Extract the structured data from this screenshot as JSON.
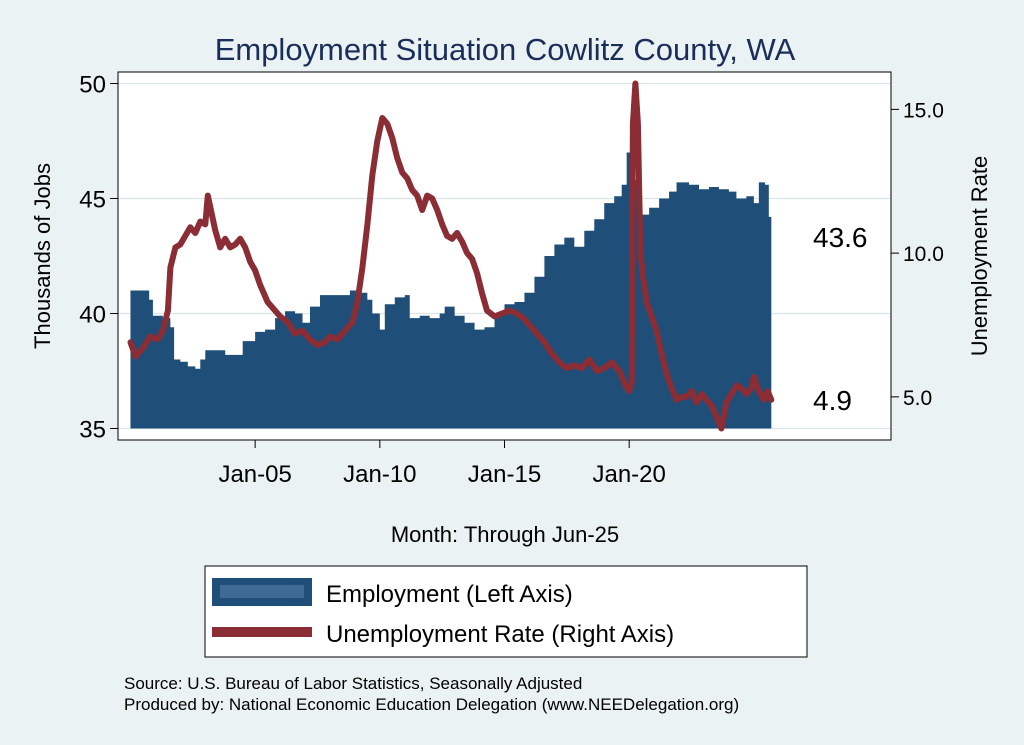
{
  "chart_data": {
    "type": "area+line",
    "title": "Employment Situation Cowlitz  County, WA",
    "xlabel": "Month: Through Jun-25",
    "ylabel_left": "Thousands of Jobs",
    "ylabel_right": "Unemployment Rate",
    "x_range": [
      1999.5,
      2030.5
    ],
    "ylim_left": [
      34.5,
      50.5
    ],
    "ylim_right": [
      3.5,
      16.3
    ],
    "yticks_left": [
      35,
      40,
      45,
      50
    ],
    "yticks_right": [
      5.0,
      10.0,
      15.0
    ],
    "yticks_right_labels": [
      "5.0",
      "10.0",
      "15.0"
    ],
    "xticks": [
      2005,
      2010,
      2015,
      2020
    ],
    "xtick_labels": [
      "Jan-05",
      "Jan-10",
      "Jan-15",
      "Jan-20"
    ],
    "series": [
      {
        "name": "Employment (Left Axis)",
        "axis": "left",
        "kind": "area",
        "color": "#1f4e79",
        "end_label": "43.6",
        "points": [
          [
            2000.0,
            41.0
          ],
          [
            2000.4,
            41.0
          ],
          [
            2000.75,
            40.6
          ],
          [
            2000.9,
            39.9
          ],
          [
            2001.3,
            39.8
          ],
          [
            2001.6,
            39.4
          ],
          [
            2001.75,
            38.0
          ],
          [
            2002.0,
            37.9
          ],
          [
            2002.3,
            37.7
          ],
          [
            2002.6,
            37.6
          ],
          [
            2002.8,
            38.0
          ],
          [
            2003.0,
            38.4
          ],
          [
            2003.4,
            38.4
          ],
          [
            2003.8,
            38.2
          ],
          [
            2004.2,
            38.2
          ],
          [
            2004.5,
            38.8
          ],
          [
            2005.0,
            39.2
          ],
          [
            2005.4,
            39.3
          ],
          [
            2005.8,
            39.8
          ],
          [
            2006.2,
            40.1
          ],
          [
            2006.6,
            40.0
          ],
          [
            2006.9,
            39.6
          ],
          [
            2007.2,
            40.3
          ],
          [
            2007.6,
            40.8
          ],
          [
            2008.0,
            40.8
          ],
          [
            2008.4,
            40.8
          ],
          [
            2008.8,
            41.0
          ],
          [
            2009.2,
            40.9
          ],
          [
            2009.5,
            40.6
          ],
          [
            2009.7,
            40.0
          ],
          [
            2010.0,
            39.3
          ],
          [
            2010.2,
            40.4
          ],
          [
            2010.6,
            40.7
          ],
          [
            2011.0,
            40.8
          ],
          [
            2011.2,
            39.8
          ],
          [
            2011.6,
            39.9
          ],
          [
            2012.0,
            39.8
          ],
          [
            2012.4,
            40.0
          ],
          [
            2012.6,
            40.3
          ],
          [
            2013.0,
            39.9
          ],
          [
            2013.4,
            39.6
          ],
          [
            2013.8,
            39.3
          ],
          [
            2014.2,
            39.4
          ],
          [
            2014.6,
            40.0
          ],
          [
            2015.0,
            40.4
          ],
          [
            2015.4,
            40.5
          ],
          [
            2015.8,
            40.9
          ],
          [
            2016.2,
            41.6
          ],
          [
            2016.6,
            42.5
          ],
          [
            2017.0,
            43.0
          ],
          [
            2017.4,
            43.3
          ],
          [
            2017.8,
            42.9
          ],
          [
            2018.2,
            43.6
          ],
          [
            2018.6,
            44.1
          ],
          [
            2019.0,
            44.8
          ],
          [
            2019.4,
            45.1
          ],
          [
            2019.7,
            45.6
          ],
          [
            2019.9,
            47.0
          ],
          [
            2020.1,
            46.5
          ],
          [
            2020.2,
            45.8
          ],
          [
            2020.45,
            44.3
          ],
          [
            2020.8,
            44.6
          ],
          [
            2021.2,
            45.0
          ],
          [
            2021.6,
            45.3
          ],
          [
            2021.9,
            45.7
          ],
          [
            2022.4,
            45.6
          ],
          [
            2022.8,
            45.4
          ],
          [
            2023.2,
            45.5
          ],
          [
            2023.6,
            45.4
          ],
          [
            2024.0,
            45.3
          ],
          [
            2024.3,
            45.0
          ],
          [
            2024.7,
            45.1
          ],
          [
            2025.0,
            44.8
          ],
          [
            2025.2,
            45.7
          ],
          [
            2025.45,
            45.6
          ],
          [
            2025.5,
            45.6
          ],
          [
            2025.6,
            44.2
          ],
          [
            2025.7,
            43.6
          ]
        ]
      },
      {
        "name": "Unemployment Rate (Right Axis)",
        "axis": "right",
        "kind": "line",
        "color": "#8b2d35",
        "end_label": "4.9",
        "points": [
          [
            2000.0,
            6.9
          ],
          [
            2000.2,
            6.4
          ],
          [
            2000.5,
            6.7
          ],
          [
            2000.8,
            7.1
          ],
          [
            2001.1,
            7.0
          ],
          [
            2001.3,
            7.3
          ],
          [
            2001.5,
            8.0
          ],
          [
            2001.6,
            9.5
          ],
          [
            2001.8,
            10.2
          ],
          [
            2002.0,
            10.3
          ],
          [
            2002.2,
            10.6
          ],
          [
            2002.4,
            10.9
          ],
          [
            2002.6,
            10.7
          ],
          [
            2002.8,
            11.1
          ],
          [
            2003.0,
            11.0
          ],
          [
            2003.1,
            12.0
          ],
          [
            2003.2,
            11.6
          ],
          [
            2003.4,
            10.8
          ],
          [
            2003.6,
            10.2
          ],
          [
            2003.8,
            10.5
          ],
          [
            2004.0,
            10.2
          ],
          [
            2004.2,
            10.3
          ],
          [
            2004.4,
            10.5
          ],
          [
            2004.6,
            10.2
          ],
          [
            2004.8,
            9.7
          ],
          [
            2005.0,
            9.4
          ],
          [
            2005.2,
            8.9
          ],
          [
            2005.5,
            8.3
          ],
          [
            2005.8,
            8.0
          ],
          [
            2006.0,
            7.8
          ],
          [
            2006.3,
            7.6
          ],
          [
            2006.6,
            7.2
          ],
          [
            2006.9,
            7.3
          ],
          [
            2007.2,
            7.0
          ],
          [
            2007.5,
            6.8
          ],
          [
            2007.8,
            6.9
          ],
          [
            2008.0,
            7.1
          ],
          [
            2008.3,
            7.0
          ],
          [
            2008.6,
            7.3
          ],
          [
            2008.9,
            7.6
          ],
          [
            2009.1,
            8.3
          ],
          [
            2009.3,
            9.5
          ],
          [
            2009.5,
            11.0
          ],
          [
            2009.7,
            12.7
          ],
          [
            2009.9,
            13.9
          ],
          [
            2010.1,
            14.7
          ],
          [
            2010.3,
            14.5
          ],
          [
            2010.5,
            14.0
          ],
          [
            2010.7,
            13.3
          ],
          [
            2010.9,
            12.8
          ],
          [
            2011.1,
            12.6
          ],
          [
            2011.3,
            12.2
          ],
          [
            2011.5,
            12.0
          ],
          [
            2011.7,
            11.5
          ],
          [
            2011.9,
            12.0
          ],
          [
            2012.1,
            11.9
          ],
          [
            2012.3,
            11.5
          ],
          [
            2012.5,
            11.0
          ],
          [
            2012.7,
            10.6
          ],
          [
            2012.9,
            10.5
          ],
          [
            2013.1,
            10.7
          ],
          [
            2013.3,
            10.4
          ],
          [
            2013.5,
            10.0
          ],
          [
            2013.7,
            9.8
          ],
          [
            2013.9,
            9.3
          ],
          [
            2014.1,
            8.6
          ],
          [
            2014.3,
            8.0
          ],
          [
            2014.6,
            7.8
          ],
          [
            2014.9,
            7.9
          ],
          [
            2015.2,
            8.0
          ],
          [
            2015.5,
            7.9
          ],
          [
            2015.8,
            7.7
          ],
          [
            2016.0,
            7.5
          ],
          [
            2016.3,
            7.2
          ],
          [
            2016.6,
            6.9
          ],
          [
            2016.9,
            6.5
          ],
          [
            2017.2,
            6.2
          ],
          [
            2017.5,
            6.0
          ],
          [
            2017.8,
            6.1
          ],
          [
            2018.1,
            6.0
          ],
          [
            2018.4,
            6.3
          ],
          [
            2018.7,
            5.9
          ],
          [
            2019.0,
            6.0
          ],
          [
            2019.3,
            6.2
          ],
          [
            2019.6,
            5.9
          ],
          [
            2019.85,
            5.4
          ],
          [
            2020.0,
            5.2
          ],
          [
            2020.1,
            5.5
          ],
          [
            2020.15,
            14.5
          ],
          [
            2020.25,
            15.9
          ],
          [
            2020.35,
            14.5
          ],
          [
            2020.45,
            10.0
          ],
          [
            2020.55,
            9.2
          ],
          [
            2020.7,
            8.3
          ],
          [
            2020.9,
            7.8
          ],
          [
            2021.1,
            7.3
          ],
          [
            2021.3,
            6.5
          ],
          [
            2021.5,
            5.8
          ],
          [
            2021.7,
            5.3
          ],
          [
            2021.9,
            4.9
          ],
          [
            2022.1,
            5.0
          ],
          [
            2022.3,
            5.0
          ],
          [
            2022.5,
            5.2
          ],
          [
            2022.7,
            4.8
          ],
          [
            2022.9,
            5.1
          ],
          [
            2023.1,
            4.9
          ],
          [
            2023.3,
            4.7
          ],
          [
            2023.5,
            4.3
          ],
          [
            2023.7,
            3.9
          ],
          [
            2023.9,
            4.8
          ],
          [
            2024.1,
            5.1
          ],
          [
            2024.3,
            5.4
          ],
          [
            2024.5,
            5.3
          ],
          [
            2024.7,
            5.1
          ],
          [
            2024.9,
            5.3
          ],
          [
            2025.0,
            5.7
          ],
          [
            2025.2,
            5.2
          ],
          [
            2025.4,
            4.9
          ],
          [
            2025.55,
            5.2
          ],
          [
            2025.7,
            4.9
          ]
        ]
      }
    ],
    "legend": {
      "position": "bottom"
    }
  },
  "source": {
    "line1": "Source: U.S. Bureau of Labor Statistics, Seasonally Adjusted",
    "line2": "Produced by: National Economic Education Delegation (www.NEEDelegation.org)"
  }
}
